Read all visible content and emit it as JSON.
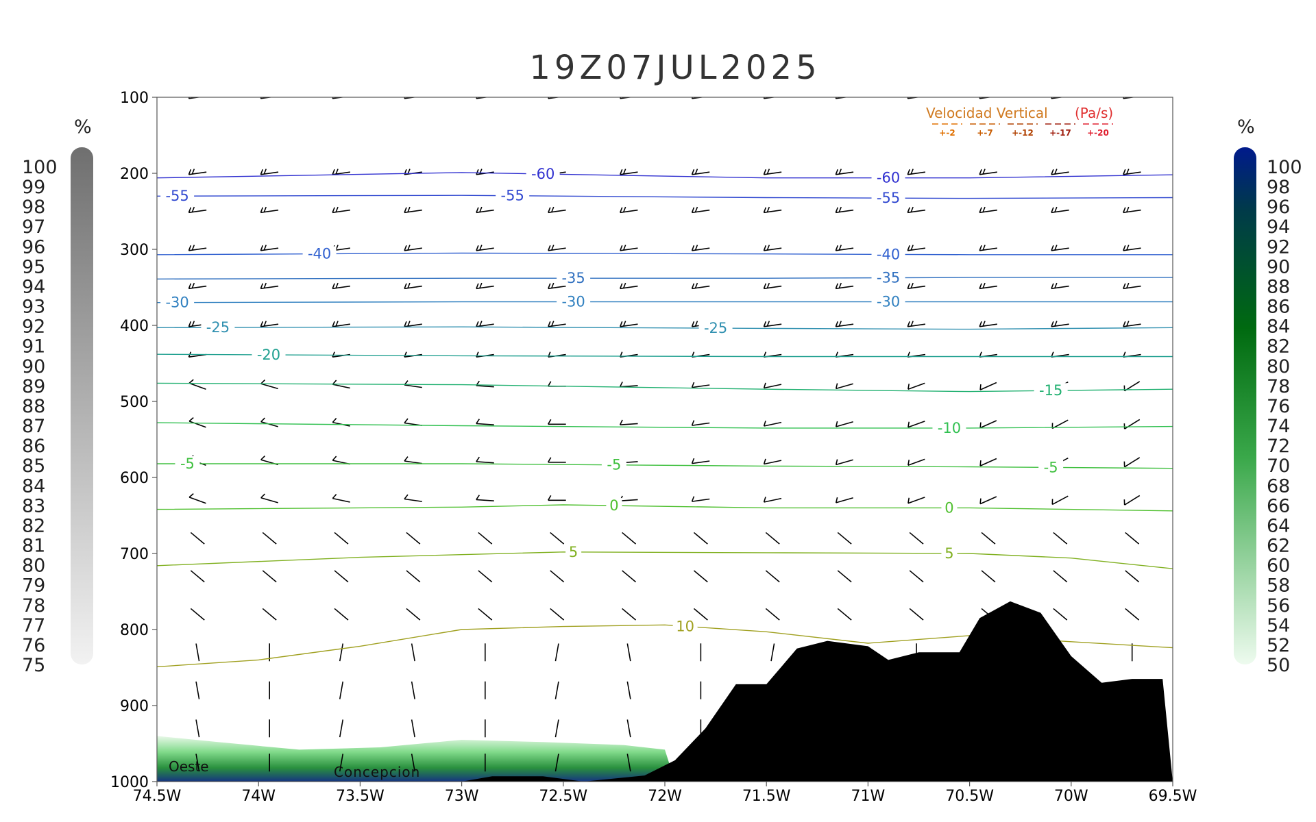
{
  "chart_data": {
    "type": "cross-section",
    "title": "19Z07JUL2025",
    "x_ticks": [
      "74.5W",
      "74W",
      "73.5W",
      "73W",
      "72.5W",
      "72W",
      "71.5W",
      "71W",
      "70.5W",
      "70W",
      "69.5W"
    ],
    "x_range": [
      -74.5,
      -69.5
    ],
    "y_ticks": [
      "100",
      "200",
      "300",
      "400",
      "500",
      "600",
      "700",
      "800",
      "900",
      "1000"
    ],
    "y_range": [
      1000,
      100
    ],
    "left_colorbar": {
      "unit": "%",
      "labels": [
        "100",
        "99",
        "98",
        "97",
        "96",
        "95",
        "94",
        "93",
        "92",
        "91",
        "90",
        "89",
        "88",
        "87",
        "86",
        "85",
        "84",
        "83",
        "82",
        "81",
        "80",
        "79",
        "78",
        "77",
        "76",
        "75"
      ]
    },
    "right_colorbar": {
      "unit": "%",
      "labels": [
        "100",
        "98",
        "96",
        "94",
        "92",
        "90",
        "88",
        "86",
        "84",
        "82",
        "80",
        "78",
        "76",
        "74",
        "72",
        "70",
        "68",
        "66",
        "64",
        "62",
        "60",
        "58",
        "56",
        "54",
        "52",
        "50"
      ]
    },
    "vertical_velocity_legend": {
      "title": "Velocidad Vertical",
      "unit": "(Pa/s)",
      "entries": [
        "+-2",
        "+-7",
        "+-12",
        "+-17",
        "+-20"
      ],
      "colors": [
        "#e07000",
        "#c85c00",
        "#b04000",
        "#a02010",
        "#e02030"
      ]
    },
    "annotations": [
      {
        "text": "Oeste",
        "lon": -74.45,
        "p": 990
      },
      {
        "text": "Concepcion",
        "lon": -73.65,
        "p": 993
      }
    ],
    "isotherms": [
      {
        "value": -60,
        "color": "#3030d0",
        "points": [
          [
            -74.5,
            206
          ],
          [
            -73,
            199
          ],
          [
            -71.5,
            206
          ],
          [
            -70.5,
            206
          ],
          [
            -69.5,
            202
          ]
        ],
        "labels": [
          {
            "text": "-60",
            "lon": -72.6
          },
          {
            "text": "-60",
            "lon": -70.9
          }
        ]
      },
      {
        "value": -55,
        "color": "#3048d0",
        "points": [
          [
            -74.5,
            230
          ],
          [
            -73,
            229
          ],
          [
            -71.5,
            232
          ],
          [
            -70.5,
            233
          ],
          [
            -69.5,
            232
          ]
        ],
        "labels": [
          {
            "text": "-55",
            "lon": -74.4
          },
          {
            "text": "-55",
            "lon": -72.75
          },
          {
            "text": "-55",
            "lon": -70.9
          }
        ]
      },
      {
        "value": -40,
        "color": "#3060d0",
        "points": [
          [
            -74.5,
            307
          ],
          [
            -73,
            305
          ],
          [
            -71.5,
            306
          ],
          [
            -70.5,
            307
          ],
          [
            -69.5,
            307
          ]
        ],
        "labels": [
          {
            "text": "-40",
            "lon": -73.7
          },
          {
            "text": "-40",
            "lon": -70.9
          }
        ]
      },
      {
        "value": -35,
        "color": "#3070c0",
        "points": [
          [
            -74.5,
            339
          ],
          [
            -73,
            338
          ],
          [
            -71.5,
            338
          ],
          [
            -70.5,
            337
          ],
          [
            -69.5,
            337
          ]
        ],
        "labels": [
          {
            "text": "-35",
            "lon": -72.45
          },
          {
            "text": "-35",
            "lon": -70.9
          }
        ]
      },
      {
        "value": -30,
        "color": "#3080c0",
        "points": [
          [
            -74.5,
            370
          ],
          [
            -73,
            369
          ],
          [
            -71.5,
            369
          ],
          [
            -70.5,
            369
          ],
          [
            -69.5,
            369
          ]
        ],
        "labels": [
          {
            "text": "-30",
            "lon": -74.4
          },
          {
            "text": "-30",
            "lon": -72.45
          },
          {
            "text": "-30",
            "lon": -70.9
          }
        ]
      },
      {
        "value": -25,
        "color": "#3090b0",
        "points": [
          [
            -74.5,
            403
          ],
          [
            -73,
            402
          ],
          [
            -71.5,
            404
          ],
          [
            -70.5,
            405
          ],
          [
            -69.5,
            403
          ]
        ],
        "labels": [
          {
            "text": "-25",
            "lon": -74.2
          },
          {
            "text": "-25",
            "lon": -71.75
          }
        ]
      },
      {
        "value": -20,
        "color": "#20a090",
        "points": [
          [
            -74.5,
            438
          ],
          [
            -73,
            440
          ],
          [
            -71.5,
            441
          ],
          [
            -70.5,
            441
          ],
          [
            -69.5,
            441
          ]
        ],
        "labels": [
          {
            "text": "-20",
            "lon": -73.95
          }
        ]
      },
      {
        "value": -15,
        "color": "#20b070",
        "points": [
          [
            -74.5,
            476
          ],
          [
            -73,
            478
          ],
          [
            -71.5,
            484
          ],
          [
            -70.5,
            487
          ],
          [
            -69.5,
            484
          ]
        ],
        "labels": [
          {
            "text": "-15",
            "lon": -70.1
          }
        ]
      },
      {
        "value": -10,
        "color": "#30c050",
        "points": [
          [
            -74.5,
            528
          ],
          [
            -73,
            532
          ],
          [
            -71.5,
            535
          ],
          [
            -70.5,
            535
          ],
          [
            -69.5,
            533
          ]
        ],
        "labels": [
          {
            "text": "-10",
            "lon": -70.6
          }
        ]
      },
      {
        "value": -5,
        "color": "#40c040",
        "points": [
          [
            -74.5,
            582
          ],
          [
            -73,
            582
          ],
          [
            -71.5,
            585
          ],
          [
            -70.5,
            586
          ],
          [
            -69.5,
            588
          ]
        ],
        "labels": [
          {
            "text": "-5",
            "lon": -74.35
          },
          {
            "text": "-5",
            "lon": -72.25
          },
          {
            "text": "-5",
            "lon": -70.1
          }
        ]
      },
      {
        "value": 0,
        "color": "#50c030",
        "points": [
          [
            -74.5,
            642
          ],
          [
            -73,
            639
          ],
          [
            -72.5,
            636
          ],
          [
            -71.5,
            640
          ],
          [
            -70.5,
            640
          ],
          [
            -69.5,
            644
          ]
        ],
        "labels": [
          {
            "text": "0",
            "lon": -72.25
          },
          {
            "text": "0",
            "lon": -70.6
          }
        ]
      },
      {
        "value": 5,
        "color": "#80b020",
        "points": [
          [
            -74.5,
            716
          ],
          [
            -73.5,
            705
          ],
          [
            -72.5,
            698
          ],
          [
            -71.5,
            699
          ],
          [
            -70.5,
            700
          ],
          [
            -70,
            706
          ],
          [
            -69.5,
            720
          ]
        ],
        "labels": [
          {
            "text": "5",
            "lon": -72.45
          },
          {
            "text": "5",
            "lon": -70.6
          }
        ]
      },
      {
        "value": 10,
        "color": "#a0a020",
        "points": [
          [
            -74.5,
            849
          ],
          [
            -74,
            840
          ],
          [
            -73.5,
            822
          ],
          [
            -73,
            800
          ],
          [
            -72.5,
            796
          ],
          [
            -72,
            794
          ],
          [
            -71.5,
            803
          ],
          [
            -71,
            818
          ],
          [
            -70.5,
            808
          ],
          [
            -70,
            816
          ],
          [
            -69.5,
            824
          ]
        ],
        "labels": [
          {
            "text": "10",
            "lon": -71.9
          }
        ]
      }
    ],
    "terrain": [
      [
        -73.0,
        1000
      ],
      [
        -72.85,
        993
      ],
      [
        -72.6,
        993
      ],
      [
        -72.4,
        1000
      ],
      [
        -72.1,
        992
      ],
      [
        -71.95,
        972
      ],
      [
        -71.8,
        930
      ],
      [
        -71.65,
        872
      ],
      [
        -71.5,
        872
      ],
      [
        -71.35,
        825
      ],
      [
        -71.2,
        815
      ],
      [
        -71.0,
        822
      ],
      [
        -70.9,
        840
      ],
      [
        -70.75,
        830
      ],
      [
        -70.55,
        830
      ],
      [
        -70.45,
        785
      ],
      [
        -70.3,
        763
      ],
      [
        -70.15,
        778
      ],
      [
        -70.0,
        835
      ],
      [
        -69.85,
        870
      ],
      [
        -69.7,
        865
      ],
      [
        -69.55,
        865
      ],
      [
        -69.5,
        1000
      ]
    ],
    "humidity_region_note": "green shading 50-100% near surface west of 72W"
  }
}
